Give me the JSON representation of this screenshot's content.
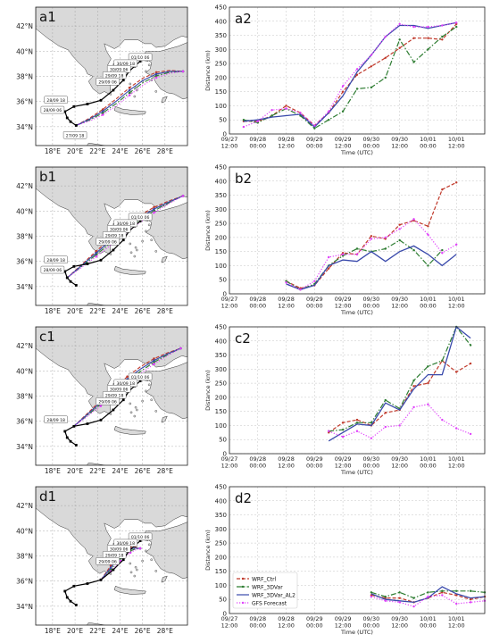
{
  "panels": [
    {
      "map_label": "a1",
      "chart_label": "a2",
      "ylim": [
        0,
        450
      ],
      "yticks": [
        0,
        50,
        100,
        150,
        200,
        250,
        300,
        350,
        400,
        450
      ],
      "ylabel": "Distance (km)",
      "xlabel": "Time (UTC)",
      "show_legend": false,
      "ctrl": [
        [
          1,
          45
        ],
        [
          2,
          45
        ],
        [
          3,
          65
        ],
        [
          4,
          100
        ],
        [
          5,
          75
        ],
        [
          6,
          30
        ],
        [
          7,
          75
        ],
        [
          8,
          150
        ],
        [
          9,
          210
        ],
        [
          10,
          240
        ],
        [
          11,
          270
        ],
        [
          12,
          305
        ],
        [
          13,
          340
        ],
        [
          14,
          340
        ],
        [
          15,
          335
        ],
        [
          16,
          390
        ]
      ],
      "var3d": [
        [
          1,
          50
        ],
        [
          2,
          40
        ],
        [
          3,
          65
        ],
        [
          4,
          90
        ],
        [
          5,
          65
        ],
        [
          6,
          20
        ],
        [
          7,
          50
        ],
        [
          8,
          80
        ],
        [
          9,
          160
        ],
        [
          10,
          165
        ],
        [
          11,
          200
        ],
        [
          12,
          335
        ],
        [
          13,
          255
        ],
        [
          14,
          300
        ],
        [
          15,
          345
        ],
        [
          16,
          380
        ]
      ],
      "var3d_al2": [
        [
          1,
          45
        ],
        [
          2,
          50
        ],
        [
          3,
          60
        ],
        [
          4,
          65
        ],
        [
          5,
          70
        ],
        [
          6,
          25
        ],
        [
          7,
          75
        ],
        [
          8,
          135
        ],
        [
          9,
          220
        ],
        [
          10,
          280
        ],
        [
          11,
          345
        ],
        [
          12,
          385
        ],
        [
          13,
          385
        ],
        [
          14,
          375
        ],
        [
          15,
          385
        ],
        [
          16,
          395
        ]
      ],
      "gfs": [
        [
          1,
          25
        ],
        [
          2,
          45
        ],
        [
          3,
          85
        ],
        [
          4,
          90
        ],
        [
          5,
          75
        ],
        [
          6,
          30
        ],
        [
          7,
          80
        ],
        [
          8,
          170
        ],
        [
          9,
          230
        ],
        [
          10,
          280
        ],
        [
          11,
          345
        ],
        [
          12,
          390
        ],
        [
          13,
          380
        ],
        [
          14,
          380
        ],
        [
          15,
          385
        ],
        [
          16,
          395
        ]
      ],
      "obs_labels": [
        "01/10 06",
        "30/09 18",
        "30/09 06",
        "29/09 18",
        "29/09 06",
        "28/09 18",
        "28/09 06",
        "27/09 18"
      ],
      "track_end": [
        29.6,
        38.4
      ]
    },
    {
      "map_label": "b1",
      "chart_label": "b2",
      "ylim": [
        0,
        450
      ],
      "yticks": [
        0,
        50,
        100,
        150,
        200,
        250,
        300,
        350,
        400,
        450
      ],
      "ylabel": "Distance (km)",
      "xlabel": "Time (UTC)",
      "show_legend": false,
      "ctrl": [
        [
          4,
          45
        ],
        [
          5,
          20
        ],
        [
          6,
          30
        ],
        [
          7,
          90
        ],
        [
          8,
          145
        ],
        [
          9,
          140
        ],
        [
          10,
          205
        ],
        [
          11,
          195
        ],
        [
          12,
          245
        ],
        [
          13,
          260
        ],
        [
          14,
          240
        ],
        [
          15,
          370
        ],
        [
          16,
          395
        ]
      ],
      "var3d": [
        [
          4,
          45
        ],
        [
          5,
          15
        ],
        [
          6,
          35
        ],
        [
          7,
          100
        ],
        [
          8,
          135
        ],
        [
          9,
          160
        ],
        [
          10,
          150
        ],
        [
          11,
          160
        ],
        [
          12,
          190
        ],
        [
          13,
          155
        ],
        [
          14,
          100
        ],
        [
          15,
          155
        ]
      ],
      "var3d_al2": [
        [
          4,
          35
        ],
        [
          5,
          15
        ],
        [
          6,
          30
        ],
        [
          7,
          100
        ],
        [
          8,
          120
        ],
        [
          9,
          115
        ],
        [
          10,
          150
        ],
        [
          11,
          115
        ],
        [
          12,
          150
        ],
        [
          13,
          170
        ],
        [
          14,
          140
        ],
        [
          15,
          100
        ],
        [
          16,
          140
        ]
      ],
      "gfs": [
        [
          4,
          40
        ],
        [
          5,
          15
        ],
        [
          6,
          45
        ],
        [
          7,
          130
        ],
        [
          8,
          140
        ],
        [
          9,
          140
        ],
        [
          10,
          195
        ],
        [
          11,
          200
        ],
        [
          12,
          230
        ],
        [
          13,
          265
        ],
        [
          14,
          210
        ],
        [
          15,
          145
        ],
        [
          16,
          175
        ]
      ],
      "obs_labels": [
        "01/10 06",
        "30/09 18",
        "30/09 06",
        "29/09 18",
        "29/09 06",
        "28/09 18",
        "28/09 06"
      ],
      "track_end": [
        29.6,
        41.2
      ]
    },
    {
      "map_label": "c1",
      "chart_label": "c2",
      "ylim": [
        0,
        450
      ],
      "yticks": [
        0,
        50,
        100,
        150,
        200,
        250,
        300,
        350,
        400,
        450
      ],
      "ylabel": "Distance (km)",
      "xlabel": "Time (UTC)",
      "show_legend": false,
      "ctrl": [
        [
          7,
          75
        ],
        [
          8,
          110
        ],
        [
          9,
          120
        ],
        [
          10,
          100
        ],
        [
          11,
          145
        ],
        [
          12,
          155
        ],
        [
          13,
          240
        ],
        [
          14,
          250
        ],
        [
          15,
          330
        ],
        [
          16,
          290
        ],
        [
          17,
          320
        ]
      ],
      "var3d": [
        [
          7,
          80
        ],
        [
          8,
          85
        ],
        [
          9,
          110
        ],
        [
          10,
          110
        ],
        [
          11,
          190
        ],
        [
          12,
          160
        ],
        [
          13,
          260
        ],
        [
          14,
          310
        ],
        [
          15,
          330
        ],
        [
          16,
          450
        ],
        [
          17,
          385
        ]
      ],
      "var3d_al2": [
        [
          7,
          45
        ],
        [
          8,
          75
        ],
        [
          9,
          105
        ],
        [
          10,
          100
        ],
        [
          11,
          180
        ],
        [
          12,
          155
        ],
        [
          13,
          230
        ],
        [
          14,
          280
        ],
        [
          15,
          280
        ],
        [
          16,
          450
        ],
        [
          17,
          410
        ]
      ],
      "gfs": [
        [
          7,
          80
        ],
        [
          8,
          60
        ],
        [
          9,
          80
        ],
        [
          10,
          55
        ],
        [
          11,
          95
        ],
        [
          12,
          100
        ],
        [
          13,
          165
        ],
        [
          14,
          175
        ],
        [
          15,
          120
        ],
        [
          16,
          90
        ],
        [
          17,
          70
        ]
      ],
      "obs_labels": [
        "01/10 06",
        "30/09 18",
        "30/09 06",
        "29/09 18",
        "29/09 06",
        "28/09 18"
      ],
      "track_end": [
        29.4,
        41.8
      ]
    },
    {
      "map_label": "d1",
      "chart_label": "d2",
      "ylim": [
        0,
        450
      ],
      "yticks": [
        0,
        50,
        100,
        150,
        200,
        250,
        300,
        350,
        400,
        450
      ],
      "ylabel": "Distance (km)",
      "xlabel": "Time (UTC)",
      "show_legend": true,
      "ctrl": [
        [
          10,
          65
        ],
        [
          11,
          55
        ],
        [
          12,
          55
        ],
        [
          13,
          40
        ],
        [
          14,
          55
        ],
        [
          15,
          75
        ],
        [
          16,
          65
        ],
        [
          17,
          50
        ],
        [
          18,
          60
        ]
      ],
      "var3d": [
        [
          10,
          75
        ],
        [
          11,
          60
        ],
        [
          12,
          75
        ],
        [
          13,
          55
        ],
        [
          14,
          75
        ],
        [
          15,
          80
        ],
        [
          16,
          80
        ],
        [
          17,
          80
        ],
        [
          18,
          75
        ]
      ],
      "var3d_al2": [
        [
          10,
          70
        ],
        [
          11,
          50
        ],
        [
          12,
          45
        ],
        [
          13,
          40
        ],
        [
          14,
          55
        ],
        [
          15,
          95
        ],
        [
          16,
          70
        ],
        [
          17,
          55
        ],
        [
          18,
          60
        ]
      ],
      "gfs": [
        [
          10,
          60
        ],
        [
          11,
          45
        ],
        [
          12,
          40
        ],
        [
          13,
          25
        ],
        [
          14,
          60
        ],
        [
          15,
          65
        ],
        [
          16,
          35
        ],
        [
          17,
          40
        ],
        [
          18,
          45
        ]
      ],
      "obs_labels": [
        "01/10 06",
        "30/09 18",
        "30/09 06",
        "29/09 18",
        "29/09 06"
      ],
      "track_end": [
        25.8,
        38.6
      ]
    }
  ],
  "map": {
    "lat_ticks": [
      "42°N",
      "40°N",
      "38°N",
      "36°N",
      "34°N"
    ],
    "lon_ticks": [
      "18°E",
      "20°E",
      "22°E",
      "24°E",
      "26°E",
      "28°E"
    ]
  },
  "x_ticks": [
    {
      "t": 0,
      "line1": "09/27",
      "line2": "12:00"
    },
    {
      "t": 2,
      "line1": "09/28",
      "line2": "00:00"
    },
    {
      "t": 4,
      "line1": "09/28",
      "line2": "12:00"
    },
    {
      "t": 6,
      "line1": "09/29",
      "line2": "00:00"
    },
    {
      "t": 8,
      "line1": "09/29",
      "line2": "12:00"
    },
    {
      "t": 10,
      "line1": "09/30",
      "line2": "00:00"
    },
    {
      "t": 12,
      "line1": "09/30",
      "line2": "12:00"
    },
    {
      "t": 14,
      "line1": "10/01",
      "line2": "00:00"
    },
    {
      "t": 16,
      "line1": "10/01",
      "line2": "12:00"
    }
  ],
  "legend": [
    {
      "key": "ctrl",
      "label": "WRF_Ctrl"
    },
    {
      "key": "var3d",
      "label": "WRF_3DVar"
    },
    {
      "key": "var3d_al2",
      "label": "WRF_3DVar_AL2"
    },
    {
      "key": "gfs",
      "label": "GFS Forecast"
    }
  ],
  "colors": {
    "ctrl": "#c0392b",
    "var3d": "#2e7d32",
    "var3d_al2": "#3949ab",
    "gfs": "#e040fb",
    "land": "#d9d9d9",
    "obs": "#000000"
  }
}
